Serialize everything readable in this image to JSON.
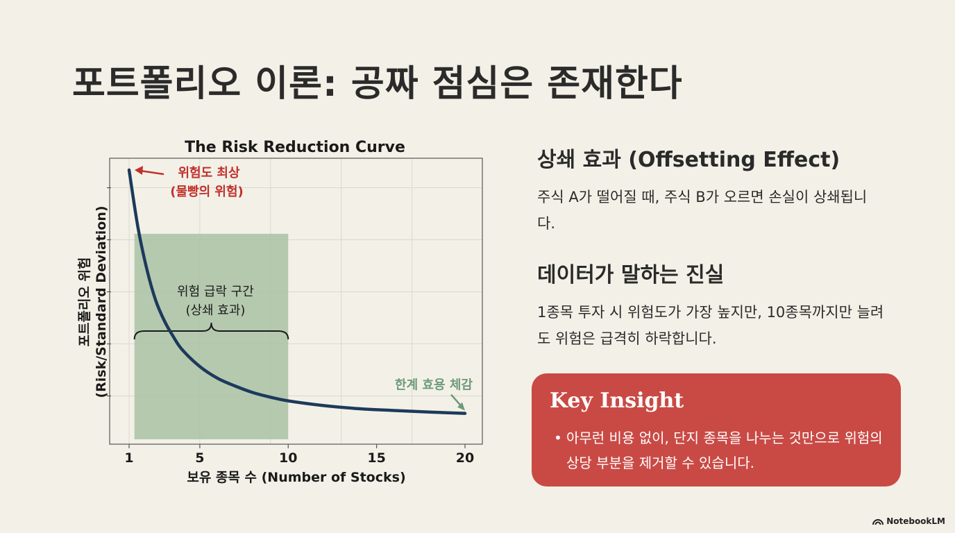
{
  "title": "포트폴리오 이론: 공짜 점심은 존재한다",
  "chart_data": {
    "type": "line",
    "title": "The Risk Reduction Curve",
    "xlabel": "보유 종목 수 (Number of Stocks)",
    "ylabel_line1": "포트폴리오 위험",
    "ylabel_line2": "(Risk/Standard Deviation)",
    "xticks": [
      1,
      5,
      10,
      15,
      20
    ],
    "xlim": [
      0,
      21
    ],
    "ylim": [
      0,
      1.05
    ],
    "grid": true,
    "series": [
      {
        "name": "",
        "x": [
          1,
          1.5,
          2,
          2.5,
          3,
          3.5,
          4,
          5,
          6,
          7,
          8,
          9,
          10,
          12,
          14,
          16,
          18,
          20
        ],
        "y": [
          1.0,
          0.78,
          0.62,
          0.5,
          0.42,
          0.36,
          0.31,
          0.245,
          0.2,
          0.17,
          0.145,
          0.127,
          0.113,
          0.095,
          0.083,
          0.076,
          0.07,
          0.065
        ]
      }
    ],
    "shaded_region": {
      "x_start": 1.3,
      "x_end": 10,
      "y_top": 0.755,
      "label_line1": "위험 급락 구간",
      "label_line2": "(상쇄 효과)"
    },
    "annotations": [
      {
        "text_line1": "위험도 최상",
        "text_line2": "(물빵의 위험)",
        "x": 1,
        "y": 1.0,
        "color": "#c2302c"
      },
      {
        "text_line1": "한계 효용 체감",
        "x": 20,
        "y": 0.065,
        "color": "#6e9a7a"
      }
    ]
  },
  "section1": {
    "title": "상쇄 효과 (Offsetting Effect)",
    "body": "주식 A가 떨어질 때, 주식 B가 오르면 손실이 상쇄됩니다."
  },
  "section2": {
    "title": "데이터가 말하는 진실",
    "body": "1종목 투자 시 위험도가 가장 높지만, 10종목까지만 늘려도 위험은 급격히 하락합니다."
  },
  "insight": {
    "title": "Key Insight",
    "bullet": "아무런 비용 없이, 단지 종목을 나누는 것만으로 위험의 상당 부분을 제거할 수 있습니다."
  },
  "brand": {
    "logo_text": "NotebookLM",
    "logo_icon": "notebooklm-icon"
  },
  "colors": {
    "curve": "#1d3a5c",
    "shade": "#a9c2a4",
    "annotation_red": "#c2302c",
    "annotation_green": "#6e9a7a",
    "insight_bg": "#c94a45"
  }
}
